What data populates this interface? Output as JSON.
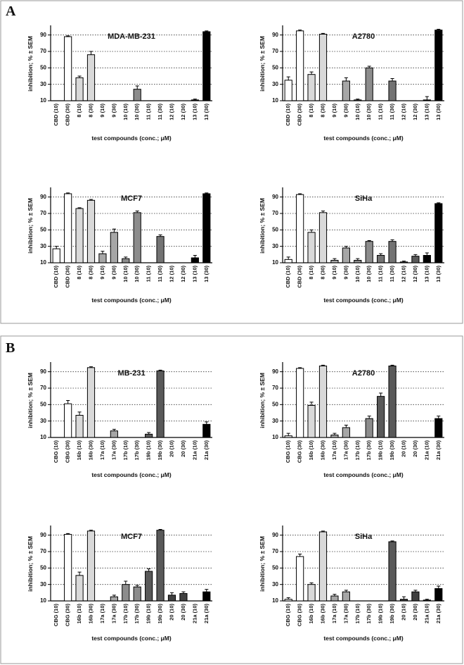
{
  "panel_labels": [
    "A",
    "B"
  ],
  "chart_data": [
    {
      "type": "bar",
      "title": "MDA-MB-231",
      "xlabel": "test compounds (conc.; μM)",
      "ylabel": "inhibition; % ± SEM",
      "categories": [
        "CBD (10)",
        "CBD (30)",
        "8 (10)",
        "8 (30)",
        "9 (10)",
        "9 (30)",
        "10 (10)",
        "10 (30)",
        "11 (10)",
        "11 (30)",
        "12 (10)",
        "12 (30)",
        "13 (10)",
        "13 (30)"
      ],
      "values": [
        null,
        88,
        38,
        66,
        null,
        null,
        null,
        24,
        null,
        null,
        null,
        null,
        11,
        94
      ],
      "errors": [
        null,
        1,
        2,
        4,
        null,
        null,
        null,
        4,
        null,
        null,
        null,
        null,
        1,
        1
      ],
      "colors": [
        null,
        "#ffffff",
        "#d9d9d9",
        "#d9d9d9",
        null,
        null,
        null,
        "#8c8c8c",
        null,
        null,
        null,
        null,
        "#000000",
        "#000000"
      ],
      "ylim": [
        10,
        100
      ],
      "yticks": [
        10,
        30,
        50,
        70,
        90
      ],
      "grid": true
    },
    {
      "type": "bar",
      "title": "A2780",
      "xlabel": "test compounds (conc.; μM)",
      "ylabel": "inhibition; % ± SEM",
      "categories": [
        "CBD (10)",
        "CBD (30)",
        "8 (10)",
        "8 (30)",
        "9 (10)",
        "9 (30)",
        "10 (10)",
        "10 (30)",
        "11 (10)",
        "11 (30)",
        "12 (10)",
        "12 (30)",
        "13 (10)",
        "13 (30)"
      ],
      "values": [
        35,
        95,
        42,
        91,
        null,
        34,
        11,
        50,
        null,
        34,
        null,
        null,
        11,
        96
      ],
      "errors": [
        4,
        1,
        3,
        1,
        null,
        4,
        1,
        2,
        null,
        3,
        null,
        null,
        4,
        1
      ],
      "colors": [
        "#ffffff",
        "#ffffff",
        "#d9d9d9",
        "#d9d9d9",
        null,
        "#a6a6a6",
        "#8c8c8c",
        "#8c8c8c",
        null,
        "#737373",
        null,
        null,
        "#000000",
        "#000000"
      ],
      "ylim": [
        10,
        100
      ],
      "yticks": [
        10,
        30,
        50,
        70,
        90
      ],
      "grid": true
    },
    {
      "type": "bar",
      "title": "MCF7",
      "xlabel": "test compounds (conc.; μM)",
      "ylabel": "inhibition; % ± SEM",
      "categories": [
        "CBD (10)",
        "CBD (30)",
        "8 (10)",
        "8 (30)",
        "9 (10)",
        "9 (30)",
        "10 (10)",
        "10 (30)",
        "11 (10)",
        "11 (30)",
        "12 (10)",
        "12 (30)",
        "13 (10)",
        "13 (30)"
      ],
      "values": [
        27,
        94,
        76,
        86,
        21,
        47,
        15,
        71,
        null,
        42,
        null,
        null,
        16,
        94
      ],
      "errors": [
        3,
        1,
        1,
        1,
        3,
        4,
        2,
        2,
        null,
        2,
        null,
        null,
        3,
        1
      ],
      "colors": [
        "#ffffff",
        "#ffffff",
        "#d9d9d9",
        "#d9d9d9",
        "#a6a6a6",
        "#a6a6a6",
        "#8c8c8c",
        "#8c8c8c",
        null,
        "#737373",
        null,
        null,
        "#000000",
        "#000000"
      ],
      "ylim": [
        10,
        100
      ],
      "yticks": [
        10,
        30,
        50,
        70,
        90
      ],
      "grid": true
    },
    {
      "type": "bar",
      "title": "SiHa",
      "xlabel": "test compounds (conc.; μM)",
      "ylabel": "inhibition; % ± SEM",
      "categories": [
        "CBD (10)",
        "CBD (30)",
        "8 (10)",
        "8 (30)",
        "9 (10)",
        "9 (30)",
        "10 (10)",
        "10 (30)",
        "11 (10)",
        "11 (30)",
        "12 (10)",
        "12 (30)",
        "13 (10)",
        "13 (30)"
      ],
      "values": [
        14,
        93,
        47,
        71,
        13,
        28,
        13,
        36,
        19,
        36,
        11,
        18,
        19,
        82
      ],
      "errors": [
        3,
        1,
        3,
        2,
        2,
        2,
        2,
        1,
        2,
        2,
        1,
        2,
        3,
        1
      ],
      "colors": [
        "#ffffff",
        "#ffffff",
        "#d9d9d9",
        "#d9d9d9",
        "#a6a6a6",
        "#a6a6a6",
        "#8c8c8c",
        "#8c8c8c",
        "#737373",
        "#737373",
        "#595959",
        "#595959",
        "#000000",
        "#000000"
      ],
      "ylim": [
        10,
        100
      ],
      "yticks": [
        10,
        30,
        50,
        70,
        90
      ],
      "grid": true
    },
    {
      "type": "bar",
      "title": "MB-231",
      "xlabel": "test compounds (conc.; μM)",
      "ylabel": "inhibition; % ± SEM",
      "categories": [
        "CBG (10)",
        "CBG (30)",
        "16b (10)",
        "16b (30)",
        "17a (10)",
        "17a (30)",
        "17b (10)",
        "17b (30)",
        "19b (10)",
        "19b (30)",
        "20 (10)",
        "20 (30)",
        "21a (10)",
        "21a (30)"
      ],
      "values": [
        null,
        51,
        37,
        95,
        null,
        18,
        null,
        null,
        14,
        91,
        null,
        null,
        null,
        26
      ],
      "errors": [
        null,
        4,
        4,
        1,
        null,
        2,
        null,
        null,
        2,
        1,
        null,
        null,
        null,
        3
      ],
      "colors": [
        null,
        "#ffffff",
        "#d9d9d9",
        "#d9d9d9",
        null,
        "#a6a6a6",
        null,
        null,
        "#595959",
        "#595959",
        null,
        null,
        null,
        "#000000"
      ],
      "ylim": [
        10,
        100
      ],
      "yticks": [
        10,
        30,
        50,
        70,
        90
      ],
      "grid": true
    },
    {
      "type": "bar",
      "title": "A2780",
      "xlabel": "test compounds (conc.; μM)",
      "ylabel": "inhibition; % ± SEM",
      "categories": [
        "CBG (10)",
        "CBG (30)",
        "16b (10)",
        "16b (30)",
        "17a (10)",
        "17a (30)",
        "17b (10)",
        "17b (30)",
        "19b (10)",
        "19b (30)",
        "20 (10)",
        "20 (30)",
        "21a (10)",
        "21a (30)"
      ],
      "values": [
        12,
        94,
        49,
        97,
        13,
        22,
        null,
        33,
        60,
        97,
        null,
        null,
        null,
        33
      ],
      "errors": [
        3,
        1,
        4,
        1,
        2,
        3,
        null,
        3,
        4,
        1,
        null,
        null,
        null,
        3
      ],
      "colors": [
        "#ffffff",
        "#ffffff",
        "#d9d9d9",
        "#d9d9d9",
        "#a6a6a6",
        "#a6a6a6",
        null,
        "#8c8c8c",
        "#595959",
        "#595959",
        null,
        null,
        null,
        "#000000"
      ],
      "ylim": [
        10,
        100
      ],
      "yticks": [
        10,
        30,
        50,
        70,
        90
      ],
      "grid": true
    },
    {
      "type": "bar",
      "title": "MCF7",
      "xlabel": "test compounds (conc.; μM)",
      "ylabel": "inhibition; % ± SEM",
      "categories": [
        "CBG (10)",
        "CBG (30)",
        "16b (10)",
        "16b (30)",
        "17a (10)",
        "17a (30)",
        "17b (10)",
        "17b (30)",
        "19b (10)",
        "19b (30)",
        "20 (10)",
        "20 (30)",
        "21a (10)",
        "21a (30)"
      ],
      "values": [
        null,
        91,
        41,
        95,
        null,
        15,
        30,
        27,
        46,
        96,
        17,
        19,
        null,
        21
      ],
      "errors": [
        null,
        1,
        4,
        1,
        null,
        2,
        4,
        2,
        3,
        1,
        3,
        2,
        null,
        3
      ],
      "colors": [
        null,
        "#ffffff",
        "#d9d9d9",
        "#d9d9d9",
        null,
        "#a6a6a6",
        "#8c8c8c",
        "#8c8c8c",
        "#595959",
        "#595959",
        "#404040",
        "#404040",
        null,
        "#000000"
      ],
      "ylim": [
        10,
        100
      ],
      "yticks": [
        10,
        30,
        50,
        70,
        90
      ],
      "grid": true
    },
    {
      "type": "bar",
      "title": "SiHa",
      "xlabel": "test compounds (conc.; μM)",
      "ylabel": "inhibition; % ± SEM",
      "categories": [
        "CBG (10)",
        "CBG (30)",
        "16b (10)",
        "16b (30)",
        "17a (10)",
        "17a (30)",
        "17b (10)",
        "17b (30)",
        "19b (10)",
        "19b (30)",
        "20 (10)",
        "20 (30)",
        "21a (10)",
        "21a (30)"
      ],
      "values": [
        12,
        64,
        30,
        94,
        16,
        21,
        null,
        null,
        null,
        82,
        12,
        21,
        11,
        25
      ],
      "errors": [
        2,
        3,
        2,
        1,
        2,
        2,
        null,
        null,
        null,
        1,
        3,
        2,
        1,
        3
      ],
      "colors": [
        "#ffffff",
        "#ffffff",
        "#d9d9d9",
        "#d9d9d9",
        "#a6a6a6",
        "#a6a6a6",
        null,
        null,
        null,
        "#595959",
        "#404040",
        "#404040",
        "#000000",
        "#000000"
      ],
      "ylim": [
        10,
        100
      ],
      "yticks": [
        10,
        30,
        50,
        70,
        90
      ],
      "grid": true
    }
  ]
}
